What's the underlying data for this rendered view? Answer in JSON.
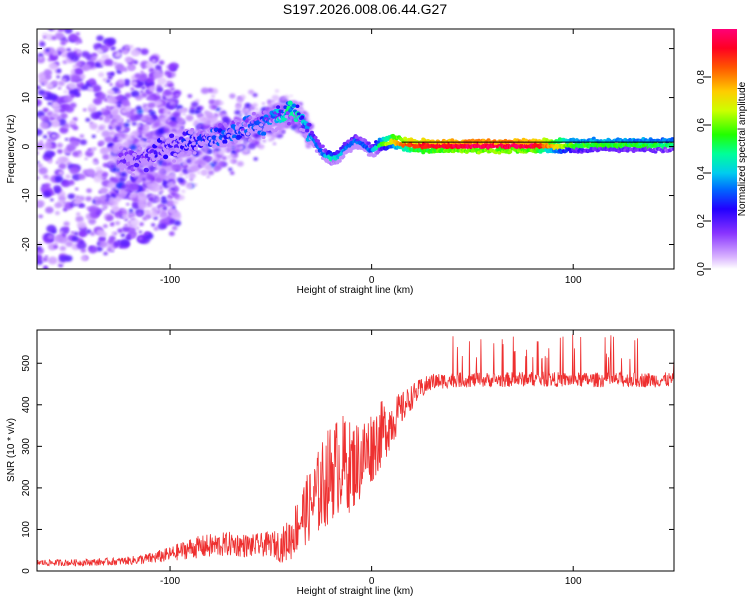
{
  "title": "S197.2026.008.06.44.G27",
  "chart_data": [
    {
      "type": "heatmap",
      "panel": "spectrogram",
      "xlabel": "Height of straight line (km)",
      "ylabel": "Frequency (Hz)",
      "xlim": [
        -166,
        150
      ],
      "ylim": [
        -25,
        24
      ],
      "xticks": [
        -100,
        0,
        100
      ],
      "yticks": [
        20,
        10,
        0,
        -10,
        -20
      ],
      "xtick_labels": [
        "-100",
        "0",
        "100"
      ],
      "ytick_labels": [
        "20",
        "10",
        "0",
        "-10",
        "-20"
      ],
      "colorbar": {
        "label": "Normalized spectral amplitude",
        "range": [
          0,
          1
        ],
        "ticks": [
          0.0,
          0.2,
          0.4,
          0.6,
          0.8
        ],
        "tick_labels": [
          "0.0",
          "0.2",
          "0.4",
          "0.6",
          "0.8"
        ],
        "colors": [
          "#ffffff",
          "#b27dff",
          "#6600ff",
          "#0000ff",
          "#00ccff",
          "#00ff66",
          "#66ff00",
          "#ffff00",
          "#ff9900",
          "#ff2200",
          "#ff0066"
        ]
      },
      "ridge": {
        "x": [
          -120,
          -110,
          -100,
          -90,
          -80,
          -70,
          -60,
          -50,
          -44,
          -40,
          -36,
          -32,
          -28,
          -24,
          -20,
          -16,
          -12,
          -8,
          -4,
          0,
          5,
          10,
          15,
          20,
          30,
          50,
          80,
          100,
          120,
          150
        ],
        "y": [
          -3,
          -2,
          0,
          1,
          2,
          2.5,
          4,
          5.5,
          6.5,
          7,
          6.5,
          3,
          1,
          -1.5,
          -2.5,
          -2,
          0,
          1,
          0.5,
          -1,
          0.5,
          1,
          0.5,
          0.2,
          0.1,
          0.1,
          0.1,
          0.2,
          0.3,
          0.2
        ],
        "amplitude": [
          0.15,
          0.2,
          0.22,
          0.25,
          0.28,
          0.3,
          0.3,
          0.32,
          0.45,
          0.5,
          0.45,
          0.38,
          0.35,
          0.32,
          0.45,
          0.4,
          0.32,
          0.35,
          0.33,
          0.32,
          0.55,
          0.7,
          0.8,
          0.88,
          0.92,
          0.97,
          0.95,
          0.55,
          0.55,
          0.5
        ]
      }
    },
    {
      "type": "line",
      "panel": "snr",
      "xlabel": "Height of straight line (km)",
      "ylabel": "SNR (10 * v/v)",
      "xlim": [
        -166,
        150
      ],
      "ylim": [
        0,
        580
      ],
      "xticks": [
        -100,
        0,
        100
      ],
      "yticks": [
        0,
        100,
        200,
        300,
        400,
        500
      ],
      "xtick_labels": [
        "-100",
        "0",
        "100"
      ],
      "ytick_labels": [
        "0",
        "100",
        "200",
        "300",
        "400",
        "500"
      ],
      "color": "#ee3030",
      "series": [
        {
          "name": "SNR",
          "x": [
            -166,
            -150,
            -130,
            -120,
            -110,
            -100,
            -90,
            -80,
            -70,
            -60,
            -50,
            -45,
            -40,
            -35,
            -30,
            -25,
            -20,
            -15,
            -10,
            -5,
            0,
            5,
            10,
            15,
            20,
            25,
            30,
            40,
            60,
            80,
            100,
            120,
            150
          ],
          "y": [
            20,
            20,
            22,
            25,
            30,
            40,
            55,
            60,
            65,
            60,
            65,
            60,
            80,
            130,
            160,
            200,
            240,
            260,
            250,
            270,
            300,
            330,
            360,
            390,
            420,
            440,
            455,
            460,
            460,
            462,
            460,
            460,
            460
          ],
          "noise_amplitude": [
            8,
            8,
            9,
            10,
            14,
            18,
            25,
            30,
            30,
            28,
            30,
            40,
            55,
            75,
            90,
            110,
            120,
            120,
            110,
            100,
            90,
            80,
            60,
            40,
            30,
            25,
            20,
            18,
            18,
            18,
            18,
            18,
            18
          ]
        }
      ]
    }
  ]
}
